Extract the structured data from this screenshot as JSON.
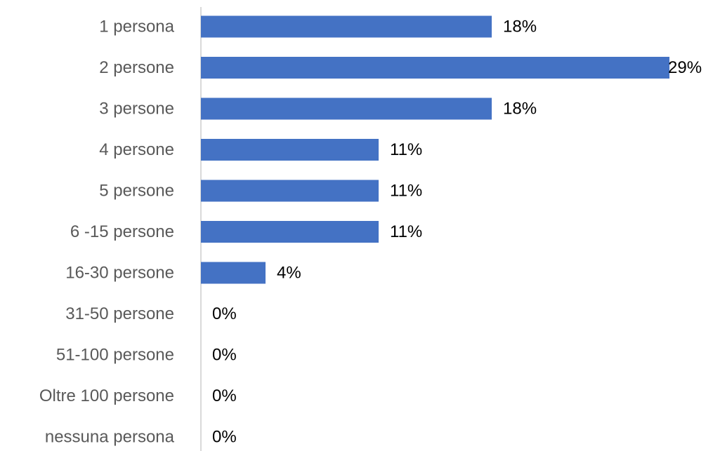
{
  "chart_data": {
    "type": "bar",
    "orientation": "horizontal",
    "categories": [
      "1 persona",
      "2 persone",
      "3 persone",
      "4 persone",
      "5 persone",
      "6 -15 persone",
      "16-30 persone",
      "31-50 persone",
      "51-100 persone",
      "Oltre 100 persone",
      "nessuna persona"
    ],
    "values": [
      18,
      29,
      18,
      11,
      11,
      11,
      4,
      0,
      0,
      0,
      0
    ],
    "value_labels": [
      "18%",
      "29%",
      "18%",
      "11%",
      "11%",
      "11%",
      "4%",
      "0%",
      "0%",
      "0%",
      "0%"
    ],
    "unit": "%",
    "title": "",
    "xlabel": "",
    "ylabel": "",
    "xlim": [
      0,
      29
    ],
    "grid": false,
    "legend": "none",
    "bar_color": "#4472c4"
  }
}
